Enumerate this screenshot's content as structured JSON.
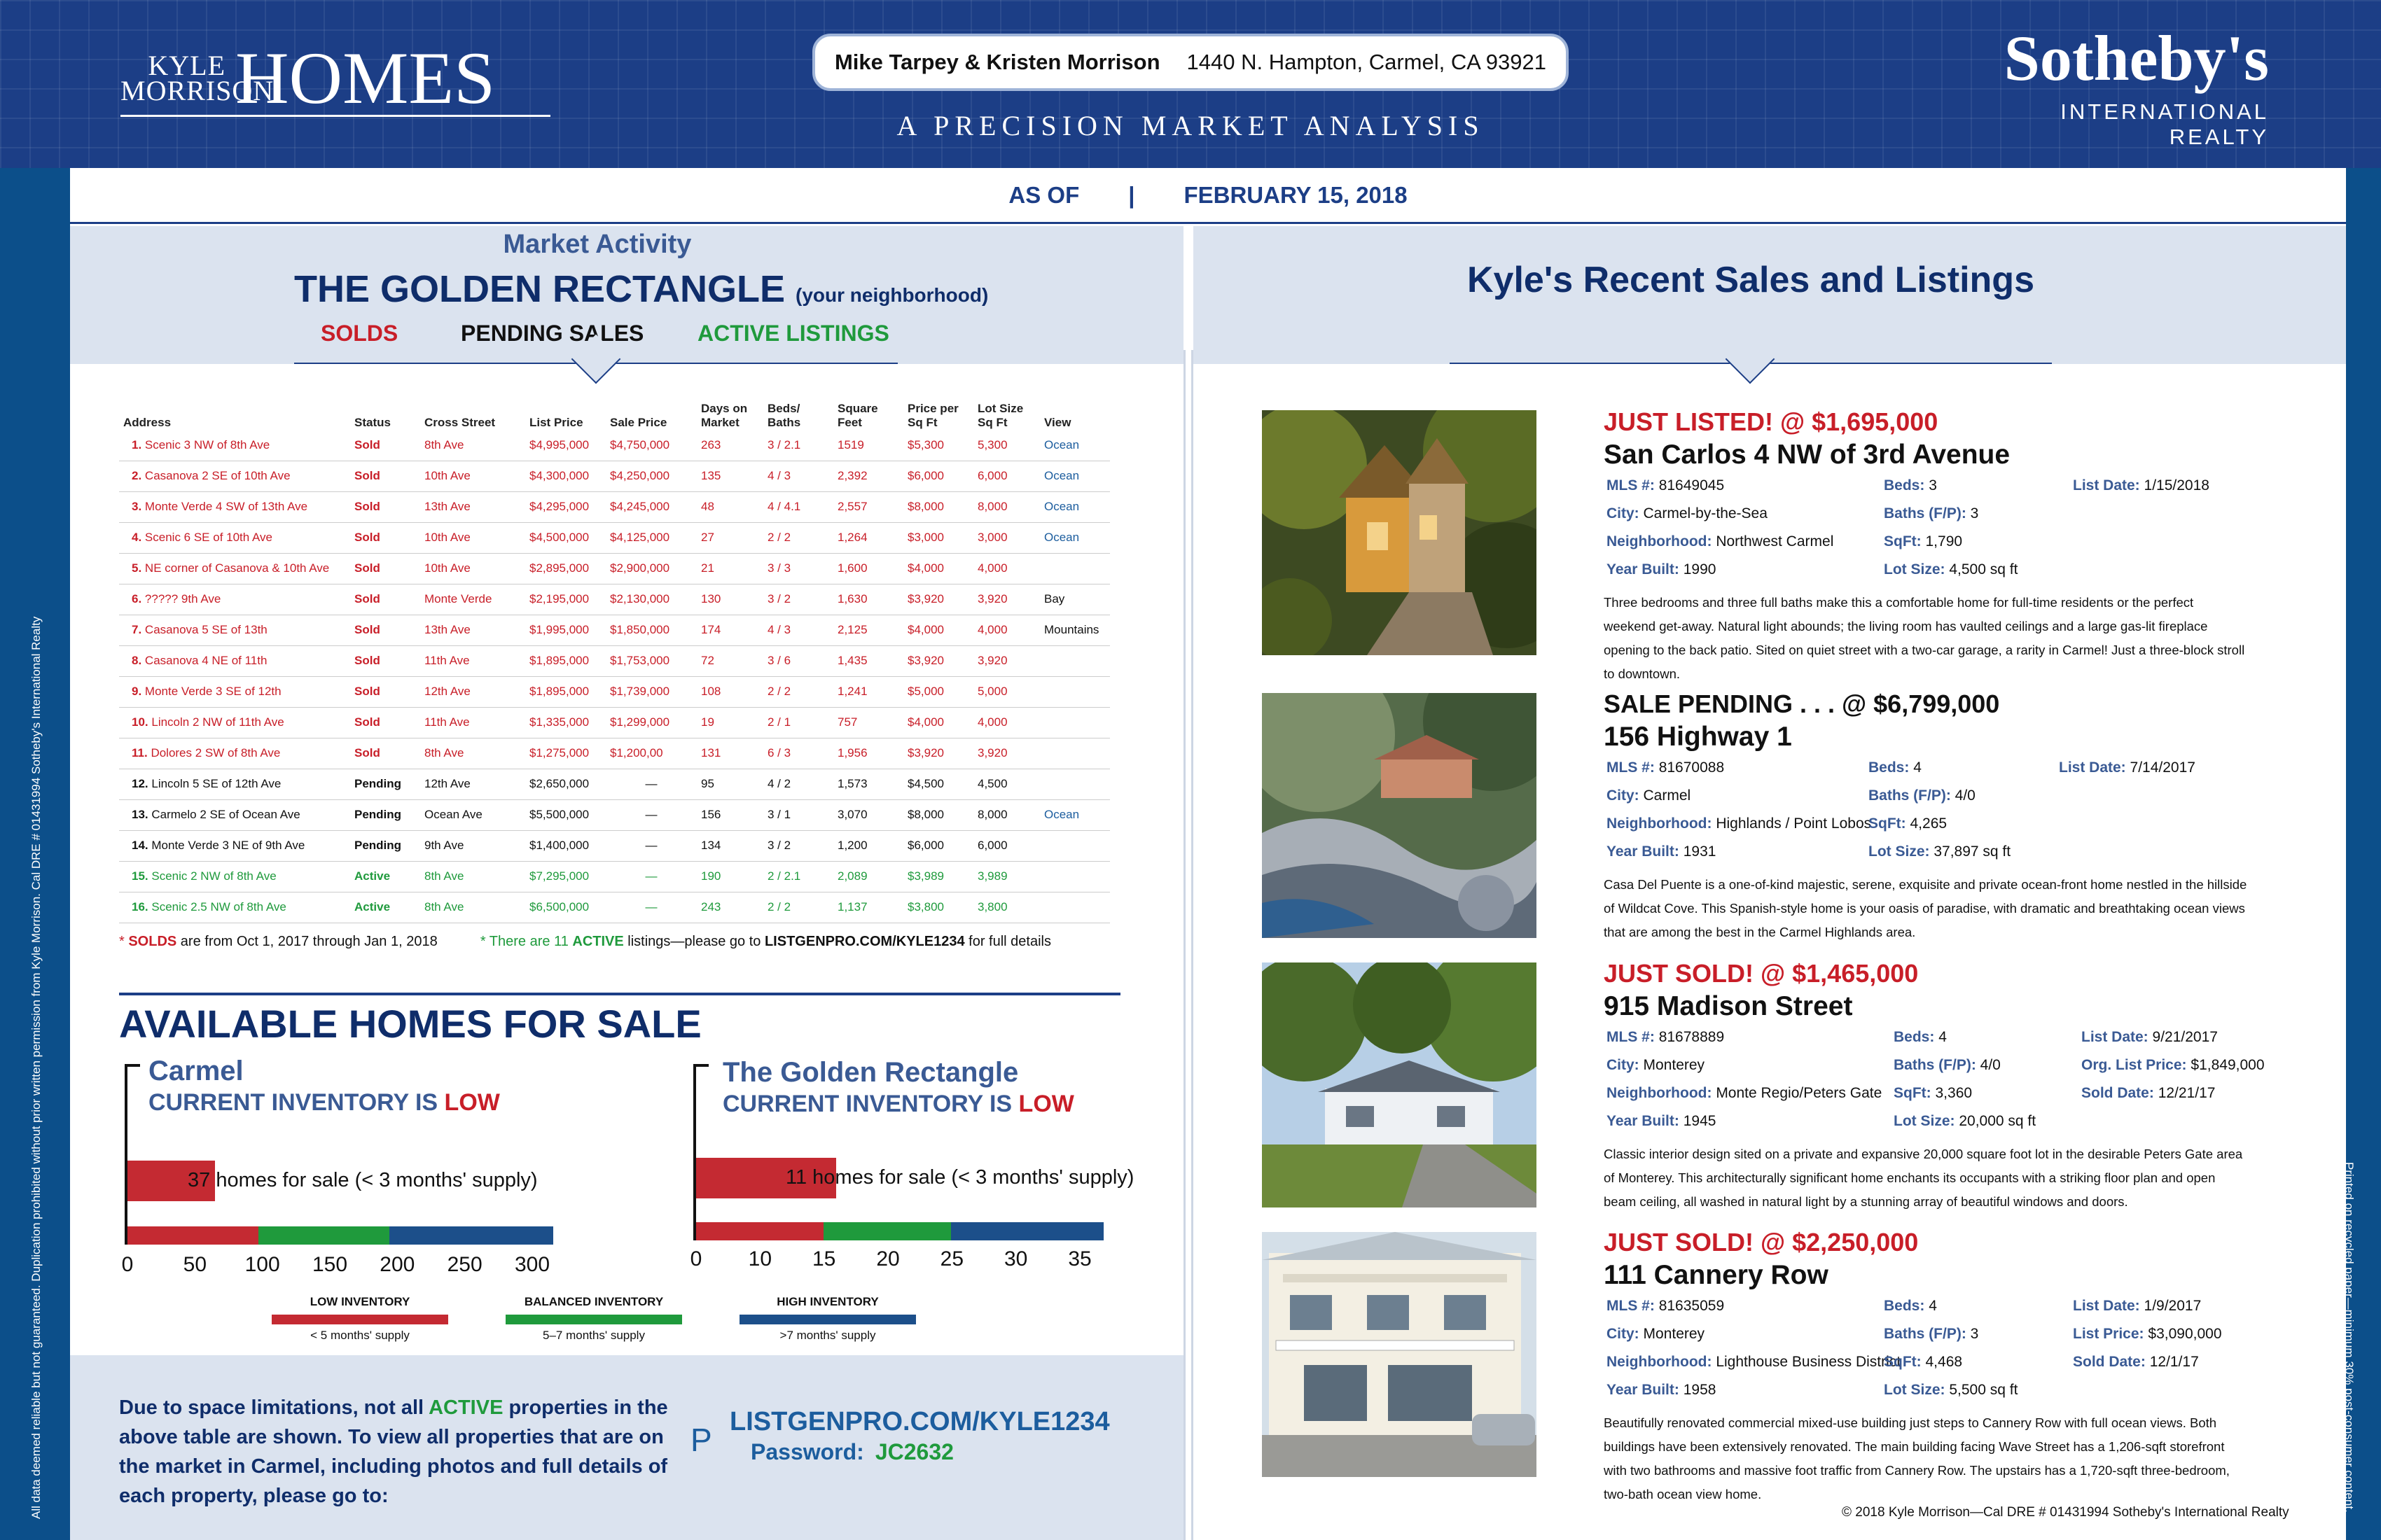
{
  "header": {
    "brand_small": "KYLE MORRISON",
    "brand_big": "HOMES",
    "agents": "Mike Tarpey & Kristen Morrison",
    "address": "1440 N. Hampton, Carmel, CA 93921",
    "tagline": "A PRECISION MARKET ANALYSIS",
    "sothebys": "Sotheby's",
    "sothebys_sub": "INTERNATIONAL REALTY"
  },
  "asof": {
    "label": "AS OF",
    "sep": "|",
    "date": "FEBRUARY 15, 2018"
  },
  "market": {
    "kicker": "Market Activity",
    "title": "THE GOLDEN RECTANGLE",
    "title_note": "(your neighborhood)",
    "tab_solds": "SOLDS",
    "tab_pending": "PENDING SALES",
    "tab_active": "ACTIVE LISTINGS"
  },
  "recent_title": "Kyle's Recent Sales and Listings",
  "table": {
    "headers": [
      "Address",
      "Status",
      "Cross Street",
      "List Price",
      "Sale Price",
      "Days on Market",
      "Beds/ Baths",
      "Square Feet",
      "Price per Sq Ft",
      "Lot Size Sq Ft",
      "View"
    ],
    "rows": [
      {
        "n": "1.",
        "addr": "Scenic 3 NW of 8th Ave",
        "status": "Sold",
        "cross": "8th Ave",
        "list": "$4,995,000",
        "sale": "$4,750,000",
        "dom": "263",
        "bb": "3 / 2.1",
        "sqft": "1519",
        "ppsf": "$5,300",
        "lot": "5,300",
        "view": "Ocean",
        "c": "sold"
      },
      {
        "n": "2.",
        "addr": "Casanova 2 SE of 10th Ave",
        "status": "Sold",
        "cross": "10th Ave",
        "list": "$4,300,000",
        "sale": "$4,250,000",
        "dom": "135",
        "bb": "4 / 3",
        "sqft": "2,392",
        "ppsf": "$6,000",
        "lot": "6,000",
        "view": "Ocean",
        "c": "sold"
      },
      {
        "n": "3.",
        "addr": "Monte Verde 4 SW of 13th Ave",
        "status": "Sold",
        "cross": "13th Ave",
        "list": "$4,295,000",
        "sale": "$4,245,000",
        "dom": "48",
        "bb": "4 / 4.1",
        "sqft": "2,557",
        "ppsf": "$8,000",
        "lot": "8,000",
        "view": "Ocean",
        "c": "sold"
      },
      {
        "n": "4.",
        "addr": "Scenic 6 SE of 10th Ave",
        "status": "Sold",
        "cross": "10th Ave",
        "list": "$4,500,000",
        "sale": "$4,125,000",
        "dom": "27",
        "bb": "2 / 2",
        "sqft": "1,264",
        "ppsf": "$3,000",
        "lot": "3,000",
        "view": "Ocean",
        "c": "sold"
      },
      {
        "n": "5.",
        "addr": "NE corner of Casanova & 10th Ave",
        "status": "Sold",
        "cross": "10th Ave",
        "list": "$2,895,000",
        "sale": "$2,900,000",
        "dom": "21",
        "bb": "3 / 3",
        "sqft": "1,600",
        "ppsf": "$4,000",
        "lot": "4,000",
        "view": "",
        "c": "sold"
      },
      {
        "n": "6.",
        "addr": "????? 9th Ave",
        "status": "Sold",
        "cross": "Monte Verde",
        "list": "$2,195,000",
        "sale": "$2,130,000",
        "dom": "130",
        "bb": "3 / 2",
        "sqft": "1,630",
        "ppsf": "$3,920",
        "lot": "3,920",
        "view": "Bay",
        "c": "sold"
      },
      {
        "n": "7.",
        "addr": "Casanova 5 SE of 13th",
        "status": "Sold",
        "cross": "13th Ave",
        "list": "$1,995,000",
        "sale": "$1,850,000",
        "dom": "174",
        "bb": "4 / 3",
        "sqft": "2,125",
        "ppsf": "$4,000",
        "lot": "4,000",
        "view": "Mountains",
        "c": "sold"
      },
      {
        "n": "8.",
        "addr": "Casanova 4 NE of 11th",
        "status": "Sold",
        "cross": "11th Ave",
        "list": "$1,895,000",
        "sale": "$1,753,000",
        "dom": "72",
        "bb": "3 / 6",
        "sqft": "1,435",
        "ppsf": "$3,920",
        "lot": "3,920",
        "view": "",
        "c": "sold"
      },
      {
        "n": "9.",
        "addr": "Monte Verde 3 SE of 12th",
        "status": "Sold",
        "cross": "12th Ave",
        "list": "$1,895,000",
        "sale": "$1,739,000",
        "dom": "108",
        "bb": "2 / 2",
        "sqft": "1,241",
        "ppsf": "$5,000",
        "lot": "5,000",
        "view": "",
        "c": "sold"
      },
      {
        "n": "10.",
        "addr": "Lincoln 2 NW of 11th Ave",
        "status": "Sold",
        "cross": "11th Ave",
        "list": "$1,335,000",
        "sale": "$1,299,000",
        "dom": "19",
        "bb": "2 / 1",
        "sqft": "757",
        "ppsf": "$4,000",
        "lot": "4,000",
        "view": "",
        "c": "sold"
      },
      {
        "n": "11.",
        "addr": "Dolores 2 SW of 8th Ave",
        "status": "Sold",
        "cross": "8th Ave",
        "list": "$1,275,000",
        "sale": "$1,200,00",
        "dom": "131",
        "bb": "6 / 3",
        "sqft": "1,956",
        "ppsf": "$3,920",
        "lot": "3,920",
        "view": "",
        "c": "sold"
      },
      {
        "n": "12.",
        "addr": "Lincoln 5 SE of 12th Ave",
        "status": "Pending",
        "cross": "12th Ave",
        "list": "$2,650,000",
        "sale": "—",
        "dom": "95",
        "bb": "4 / 2",
        "sqft": "1,573",
        "ppsf": "$4,500",
        "lot": "4,500",
        "view": "",
        "c": "blk"
      },
      {
        "n": "13.",
        "addr": "Carmelo 2 SE of Ocean Ave",
        "status": "Pending",
        "cross": "Ocean Ave",
        "list": "$5,500,000",
        "sale": "—",
        "dom": "156",
        "bb": "3 / 1",
        "sqft": "3,070",
        "ppsf": "$8,000",
        "lot": "8,000",
        "view": "Ocean",
        "c": "blk"
      },
      {
        "n": "14.",
        "addr": "Monte Verde 3 NE of 9th Ave",
        "status": "Pending",
        "cross": "9th Ave",
        "list": "$1,400,000",
        "sale": "—",
        "dom": "134",
        "bb": "3 / 2",
        "sqft": "1,200",
        "ppsf": "$6,000",
        "lot": "6,000",
        "view": "",
        "c": "blk"
      },
      {
        "n": "15.",
        "addr": "Scenic 2 NW of 8th Ave",
        "status": "Active",
        "cross": "8th Ave",
        "list": "$7,295,000",
        "sale": "—",
        "dom": "190",
        "bb": "2 / 2.1",
        "sqft": "2,089",
        "ppsf": "$3,989",
        "lot": "3,989",
        "view": "",
        "c": "act"
      },
      {
        "n": "16.",
        "addr": "Scenic 2.5 NW of 8th Ave",
        "status": "Active",
        "cross": "8th Ave",
        "list": "$6,500,000",
        "sale": "—",
        "dom": "243",
        "bb": "2 / 2",
        "sqft": "1,137",
        "ppsf": "$3,800",
        "lot": "3,800",
        "view": "",
        "c": "act"
      }
    ]
  },
  "footnotes": {
    "solds_pre": "* ",
    "solds_key": "SOLDS",
    "solds_post": " are from Oct 1, 2017 through Jan 1, 2018",
    "active_pre": "* There are 11 ",
    "active_key": "ACTIVE",
    "active_mid": " listings—please go to ",
    "active_url": "LISTGENPRO.COM/KYLE1234",
    "active_post": " for full details"
  },
  "available": {
    "title": "AVAILABLE HOMES FOR SALE"
  },
  "chart_data": [
    {
      "type": "bar",
      "title": "Carmel",
      "subtitle": "CURRENT INVENTORY IS LOW",
      "label": "37 homes for sale  (< 3 months' supply)",
      "value": 37,
      "ticks": [
        0,
        50,
        100,
        150,
        200,
        250,
        300
      ],
      "xlim": [
        0,
        325
      ],
      "bands": [
        {
          "from": 0,
          "to": 100,
          "color": "#c42a32"
        },
        {
          "from": 100,
          "to": 200,
          "color": "#1f9a3c"
        },
        {
          "from": 200,
          "to": 325,
          "color": "#1c4f8a"
        }
      ]
    },
    {
      "type": "bar",
      "title": "The Golden Rectangle",
      "subtitle": "CURRENT INVENTORY IS LOW",
      "label": "11 homes for sale  (< 3 months' supply)",
      "value": 11,
      "ticks": [
        0,
        10,
        15,
        20,
        25,
        30,
        35
      ],
      "xlim": [
        0,
        32
      ],
      "bands": [
        {
          "from": 0,
          "to": 10,
          "color": "#c42a32"
        },
        {
          "from": 10,
          "to": 20,
          "color": "#1f9a3c"
        },
        {
          "from": 20,
          "to": 32,
          "color": "#1c4f8a"
        }
      ]
    }
  ],
  "inv_labels": {
    "sub_pre": "CURRENT INVENTORY IS ",
    "sub_low": "LOW"
  },
  "legend": [
    {
      "title": "LOW INVENTORY",
      "sub": "< 5 months' supply",
      "color": "#c42a32"
    },
    {
      "title": "BALANCED INVENTORY",
      "sub": "5–7 months' supply",
      "color": "#1f9a3c"
    },
    {
      "title": "HIGH INVENTORY",
      "sub": ">7 months' supply",
      "color": "#1c4f8a"
    }
  ],
  "bottom": {
    "text_pre": "Due to space limitations, not all ",
    "text_key": "ACTIVE",
    "text_post": " properties in the above table are shown. To view all properties that are on the market in Carmel, including photos and full details of each property, please go to:",
    "p_icon": "P",
    "url": "LISTGENPRO.COM/KYLE1234",
    "pwd_label": "Password:",
    "pwd": "JC2632"
  },
  "listings": [
    {
      "hd": "JUST LISTED! @ $1,695,000",
      "addr": "San Carlos 4 NW of 3rd Avenue",
      "f": [
        [
          "MLS #:",
          "81649045"
        ],
        [
          "Beds:",
          "3"
        ],
        [
          "List Date:",
          "1/15/2018"
        ],
        [
          "City:",
          "Carmel-by-the-Sea"
        ],
        [
          "Baths (F/P):",
          "3"
        ],
        [
          "",
          ""
        ],
        [
          "Neighborhood:",
          "Northwest Carmel"
        ],
        [
          "SqFt:",
          "1,790"
        ],
        [
          "",
          ""
        ],
        [
          "Year Built:",
          "1990"
        ],
        [
          "Lot Size:",
          "4,500 sq ft"
        ],
        [
          "",
          ""
        ]
      ],
      "desc": "Three bedrooms and three full baths make this a comfortable home for full-time residents or the perfect weekend get-away. Natural light abounds; the living room has vaulted ceilings and a large gas-lit fireplace opening to the back patio. Sited on quiet street with a two-car garage, a rarity in Carmel! Just a three-block stroll to downtown."
    },
    {
      "hd": "SALE PENDING . . .  @ $6,799,000",
      "addr": "156 Highway 1",
      "f": [
        [
          "MLS #:",
          "81670088"
        ],
        [
          "Beds:",
          "4"
        ],
        [
          "List Date:",
          "7/14/2017"
        ],
        [
          "City:",
          "Carmel"
        ],
        [
          "Baths (F/P):",
          "4/0"
        ],
        [
          "",
          ""
        ],
        [
          "Neighborhood:",
          "Highlands / Point Lobos"
        ],
        [
          "SqFt:",
          "4,265"
        ],
        [
          "",
          ""
        ],
        [
          "Year Built:",
          "1931"
        ],
        [
          "Lot Size:",
          "37,897 sq ft"
        ],
        [
          "",
          ""
        ]
      ],
      "desc": "Casa Del Puente is a one-of-kind majestic, serene, exquisite and private ocean-front home nestled in the hillside of Wildcat Cove. This Spanish-style home is your oasis of paradise, with dramatic and breathtaking ocean views that are among the best in the Carmel Highlands area."
    },
    {
      "hd": "JUST SOLD! @ $1,465,000",
      "addr": "915 Madison Street",
      "f": [
        [
          "MLS #:",
          "81678889"
        ],
        [
          "Beds:",
          "4"
        ],
        [
          "List Date:",
          "9/21/2017"
        ],
        [
          "City:",
          "Monterey"
        ],
        [
          "Baths (F/P):",
          "4/0"
        ],
        [
          "Org. List Price:",
          "$1,849,000"
        ],
        [
          "Neighborhood:",
          "Monte Regio/Peters Gate"
        ],
        [
          "SqFt:",
          "3,360"
        ],
        [
          "Sold Date:",
          "12/21/17"
        ],
        [
          "Year Built:",
          "1945"
        ],
        [
          "Lot Size:",
          "20,000 sq ft"
        ],
        [
          "",
          ""
        ]
      ],
      "desc": "Classic interior design sited on a private and expansive 20,000 square foot lot in the desirable Peters Gate area of Monterey. This architecturally significant home enchants its occupants with a striking floor plan and open beam ceiling, all washed in natural light by a stunning array of beautiful windows and doors."
    },
    {
      "hd": "JUST SOLD! @ $2,250,000",
      "addr": "111 Cannery Row",
      "f": [
        [
          "MLS #:",
          "81635059"
        ],
        [
          "Beds:",
          "4"
        ],
        [
          "List Date:",
          "1/9/2017"
        ],
        [
          "City:",
          "Monterey"
        ],
        [
          "Baths (F/P):",
          "3"
        ],
        [
          "List Price:",
          "$3,090,000"
        ],
        [
          "Neighborhood:",
          "Lighthouse Business District"
        ],
        [
          "SqFt:",
          "4,468"
        ],
        [
          "Sold Date:",
          "12/1/17"
        ],
        [
          "Year Built:",
          "1958"
        ],
        [
          "Lot Size:",
          "5,500 sq ft"
        ],
        [
          "",
          ""
        ]
      ],
      "desc": "Beautifully renovated commercial mixed-use building just steps to Cannery Row with full ocean views. Both buildings have been extensively renovated. The main building facing Wave Street has a 1,206-sqft storefront with two bathrooms and massive foot traffic from Cannery Row. The upstairs has a 1,720-sqft three-bedroom, two-bath ocean view home."
    }
  ],
  "copyright": "© 2018 Kyle Morrison—Cal DRE # 01431994      Sotheby's International Realty",
  "side_left": "All data deemed reliable but not guaranteed. Duplication prohibited without prior written permission from Kyle Morrison.      Cal DRE # 01431994      Sotheby's International Realty",
  "side_right": "Printed on recycled paper—minimum 30% post-consumer content.",
  "recycle_icon": "♻",
  "colors": {
    "navy": "#1c3e86",
    "red": "#c81e28",
    "green": "#1f9a3c",
    "blue": "#1c5d9e"
  }
}
